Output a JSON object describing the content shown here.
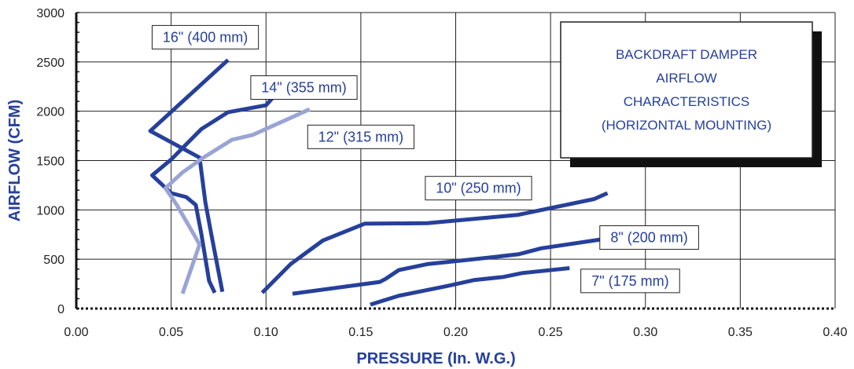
{
  "chart_data": {
    "type": "line",
    "title_lines": [
      "BACKDRAFT DAMPER",
      "AIRFLOW",
      "CHARACTERISTICS",
      "(HORIZONTAL MOUNTING)"
    ],
    "xlabel": "PRESSURE (In. W.G.)",
    "ylabel": "AIRFLOW (CFM)",
    "xlim": [
      0,
      0.4
    ],
    "ylim": [
      0,
      3000
    ],
    "xticks": [
      "0.00",
      "0.05",
      "0.10",
      "0.15",
      "0.20",
      "0.25",
      "0.30",
      "0.35",
      "0.40"
    ],
    "yticks": [
      "0",
      "500",
      "1000",
      "1500",
      "2000",
      "2500",
      "3000"
    ],
    "grid": true,
    "colors": {
      "dark": "#26409a",
      "light": "#9aa4d4",
      "text": "#26409a",
      "shadow": "#111111"
    },
    "series": [
      {
        "name": "16\" (400 mm)",
        "color": "dark",
        "points": [
          [
            0.077,
            170
          ],
          [
            0.071,
            770
          ],
          [
            0.068,
            1080
          ],
          [
            0.065,
            1530
          ],
          [
            0.039,
            1800
          ],
          [
            0.08,
            2520
          ]
        ],
        "label_at": [
          0.068,
          2750
        ]
      },
      {
        "name": "14\" (355 mm)",
        "color": "dark",
        "points": [
          [
            0.073,
            160
          ],
          [
            0.07,
            280
          ],
          [
            0.066,
            750
          ],
          [
            0.063,
            1050
          ],
          [
            0.058,
            1130
          ],
          [
            0.05,
            1170
          ],
          [
            0.045,
            1260
          ],
          [
            0.04,
            1350
          ],
          [
            0.05,
            1510
          ],
          [
            0.066,
            1820
          ],
          [
            0.08,
            1990
          ],
          [
            0.1,
            2060
          ],
          [
            0.113,
            2340
          ]
        ],
        "label_at": [
          0.12,
          2240
        ]
      },
      {
        "name": "12\" (315 mm)",
        "color": "light",
        "points": [
          [
            0.056,
            150
          ],
          [
            0.065,
            650
          ],
          [
            0.053,
            1050
          ],
          [
            0.047,
            1220
          ],
          [
            0.056,
            1380
          ],
          [
            0.067,
            1530
          ],
          [
            0.082,
            1710
          ],
          [
            0.093,
            1760
          ],
          [
            0.123,
            2020
          ]
        ],
        "label_at": [
          0.15,
          1740
        ]
      },
      {
        "name": "10\" (250 mm)",
        "color": "dark",
        "points": [
          [
            0.098,
            160
          ],
          [
            0.113,
            450
          ],
          [
            0.13,
            690
          ],
          [
            0.152,
            860
          ],
          [
            0.185,
            865
          ],
          [
            0.233,
            950
          ],
          [
            0.273,
            1110
          ],
          [
            0.28,
            1170
          ]
        ],
        "label_at": [
          0.212,
          1220
        ]
      },
      {
        "name": "8\" (200 mm)",
        "color": "dark",
        "points": [
          [
            0.114,
            150
          ],
          [
            0.16,
            270
          ],
          [
            0.163,
            300
          ],
          [
            0.17,
            390
          ],
          [
            0.185,
            450
          ],
          [
            0.205,
            490
          ],
          [
            0.233,
            550
          ],
          [
            0.245,
            610
          ],
          [
            0.28,
            710
          ]
        ],
        "label_at": [
          0.302,
          720
        ]
      },
      {
        "name": "7\" (175 mm)",
        "color": "dark",
        "points": [
          [
            0.155,
            40
          ],
          [
            0.17,
            130
          ],
          [
            0.196,
            230
          ],
          [
            0.21,
            290
          ],
          [
            0.225,
            320
          ],
          [
            0.235,
            360
          ],
          [
            0.26,
            410
          ]
        ],
        "label_at": [
          0.292,
          280
        ]
      }
    ]
  }
}
